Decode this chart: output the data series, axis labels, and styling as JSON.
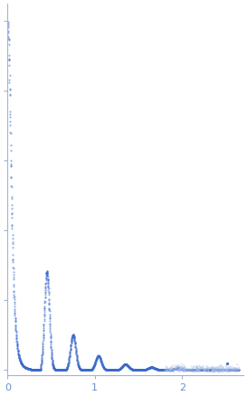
{
  "title": "",
  "xlabel": "",
  "ylabel": "",
  "xlim": [
    0,
    2.7
  ],
  "x_ticks": [
    0,
    1,
    2
  ],
  "dot_color": "#3a6bc9",
  "dot_color_light": "#aabfe8",
  "background_color": "#ffffff",
  "spine_color": "#a0b4d8",
  "tick_color": "#a0b4d8",
  "label_color": "#6a8fc8",
  "figsize": [
    2.73,
    4.37
  ],
  "dpi": 100
}
